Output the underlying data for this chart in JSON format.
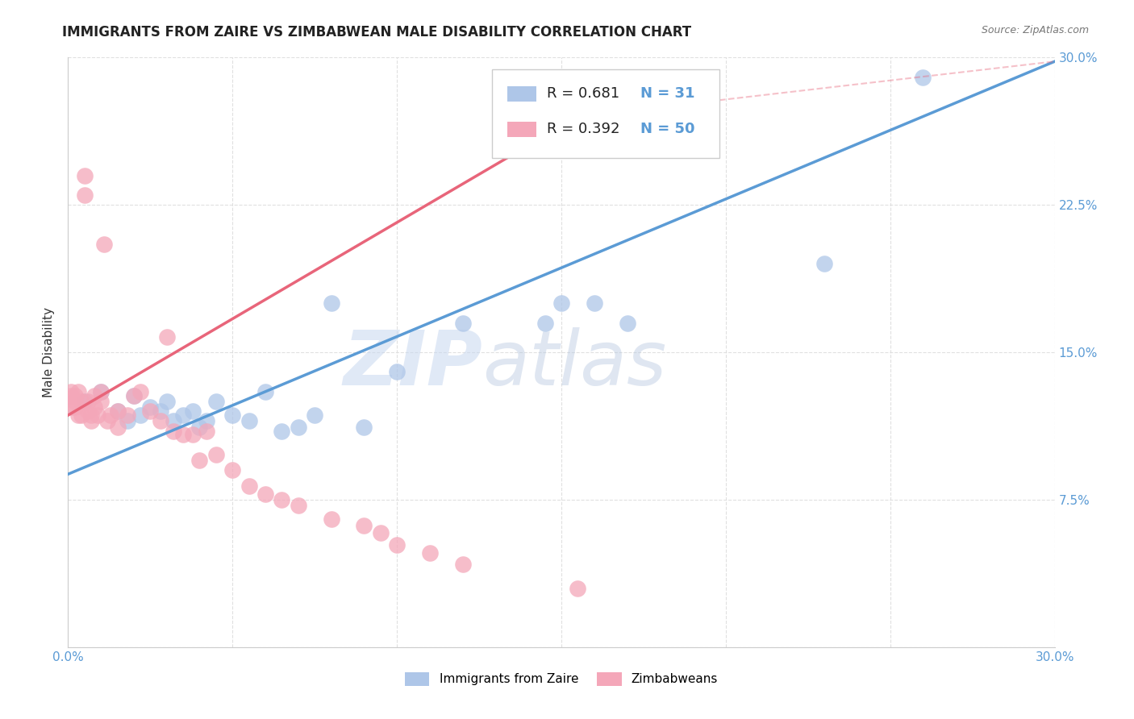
{
  "title": "IMMIGRANTS FROM ZAIRE VS ZIMBABWEAN MALE DISABILITY CORRELATION CHART",
  "source": "Source: ZipAtlas.com",
  "ylabel": "Male Disability",
  "xlim": [
    0.0,
    0.3
  ],
  "ylim": [
    0.0,
    0.3
  ],
  "xticks": [
    0.0,
    0.05,
    0.1,
    0.15,
    0.2,
    0.25,
    0.3
  ],
  "yticks": [
    0.0,
    0.075,
    0.15,
    0.225,
    0.3
  ],
  "legend_entries": [
    {
      "label": "Immigrants from Zaire",
      "color": "#aec6e8"
    },
    {
      "label": "Zimbabweans",
      "color": "#f4a7b9"
    }
  ],
  "legend_r_n": [
    {
      "R": "0.681",
      "N": "31",
      "color": "#aec6e8"
    },
    {
      "R": "0.392",
      "N": "50",
      "color": "#f4a7b9"
    }
  ],
  "blue_scatter_x": [
    0.005,
    0.01,
    0.015,
    0.018,
    0.02,
    0.022,
    0.025,
    0.028,
    0.03,
    0.032,
    0.035,
    0.038,
    0.04,
    0.042,
    0.045,
    0.05,
    0.055,
    0.06,
    0.065,
    0.07,
    0.075,
    0.08,
    0.09,
    0.1,
    0.12,
    0.145,
    0.15,
    0.16,
    0.17,
    0.23,
    0.26
  ],
  "blue_scatter_y": [
    0.125,
    0.13,
    0.12,
    0.115,
    0.128,
    0.118,
    0.122,
    0.12,
    0.125,
    0.115,
    0.118,
    0.12,
    0.112,
    0.115,
    0.125,
    0.118,
    0.115,
    0.13,
    0.11,
    0.112,
    0.118,
    0.175,
    0.112,
    0.14,
    0.165,
    0.165,
    0.175,
    0.175,
    0.165,
    0.195,
    0.29
  ],
  "pink_scatter_x": [
    0.001,
    0.001,
    0.001,
    0.002,
    0.002,
    0.002,
    0.003,
    0.003,
    0.004,
    0.004,
    0.005,
    0.005,
    0.006,
    0.006,
    0.007,
    0.007,
    0.008,
    0.008,
    0.009,
    0.01,
    0.01,
    0.011,
    0.012,
    0.013,
    0.015,
    0.015,
    0.018,
    0.02,
    0.022,
    0.025,
    0.028,
    0.03,
    0.032,
    0.035,
    0.038,
    0.04,
    0.042,
    0.045,
    0.05,
    0.055,
    0.06,
    0.065,
    0.07,
    0.08,
    0.09,
    0.095,
    0.1,
    0.11,
    0.12,
    0.155
  ],
  "pink_scatter_y": [
    0.13,
    0.128,
    0.122,
    0.128,
    0.125,
    0.122,
    0.13,
    0.118,
    0.125,
    0.118,
    0.24,
    0.23,
    0.125,
    0.12,
    0.118,
    0.115,
    0.128,
    0.122,
    0.118,
    0.13,
    0.125,
    0.205,
    0.115,
    0.118,
    0.12,
    0.112,
    0.118,
    0.128,
    0.13,
    0.12,
    0.115,
    0.158,
    0.11,
    0.108,
    0.108,
    0.095,
    0.11,
    0.098,
    0.09,
    0.082,
    0.078,
    0.075,
    0.072,
    0.065,
    0.062,
    0.058,
    0.052,
    0.048,
    0.042,
    0.03
  ],
  "blue_line_x": [
    0.0,
    0.3
  ],
  "blue_line_y": [
    0.088,
    0.298
  ],
  "pink_line_x": [
    0.0,
    0.155
  ],
  "pink_line_y": [
    0.118,
    0.27
  ],
  "pink_dash_line_x": [
    0.0,
    0.155
  ],
  "pink_dash_line_y": [
    0.118,
    0.27
  ],
  "blue_color": "#5b9bd5",
  "pink_color": "#e8657a",
  "scatter_blue": "#aec6e8",
  "scatter_pink": "#f4a7b9",
  "watermark_zip": "ZIP",
  "watermark_atlas": "atlas",
  "background": "#ffffff",
  "grid_color": "#dddddd"
}
